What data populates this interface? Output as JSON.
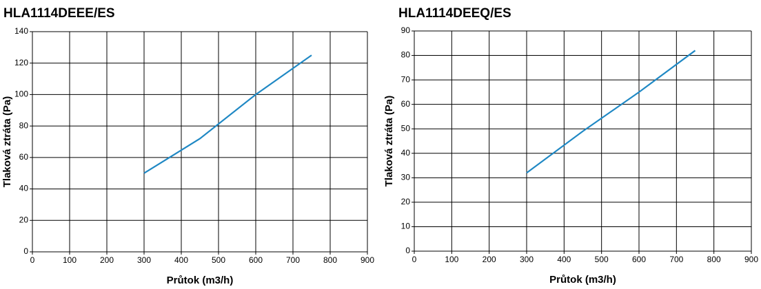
{
  "chart_data": [
    {
      "type": "line",
      "title": "HLA1114DEEE/ES",
      "x_label": "Průtok (m3/h)",
      "y_label": "Tlaková ztráta (Pa)",
      "x": [
        300,
        450,
        600,
        750
      ],
      "values": [
        50,
        72,
        100,
        125
      ],
      "color": "#1f88c4",
      "xlim": [
        0,
        900
      ],
      "xticks": [
        0,
        100,
        200,
        300,
        400,
        500,
        600,
        700,
        800,
        900
      ],
      "ylim": [
        0,
        140
      ],
      "yticks": [
        0,
        20,
        40,
        60,
        80,
        100,
        120,
        140
      ],
      "grid": true
    },
    {
      "type": "line",
      "title": "HLA1114DEEQ/ES",
      "x_label": "Průtok (m3/h)",
      "y_label": "Tlaková ztráta (Pa)",
      "x": [
        300,
        450,
        600,
        750
      ],
      "values": [
        32,
        49,
        65,
        82
      ],
      "color": "#1f88c4",
      "xlim": [
        0,
        900
      ],
      "xticks": [
        0,
        100,
        200,
        300,
        400,
        500,
        600,
        700,
        800,
        900
      ],
      "ylim": [
        0,
        90
      ],
      "yticks": [
        0,
        10,
        20,
        30,
        40,
        50,
        60,
        70,
        80,
        90
      ],
      "grid": true
    }
  ]
}
